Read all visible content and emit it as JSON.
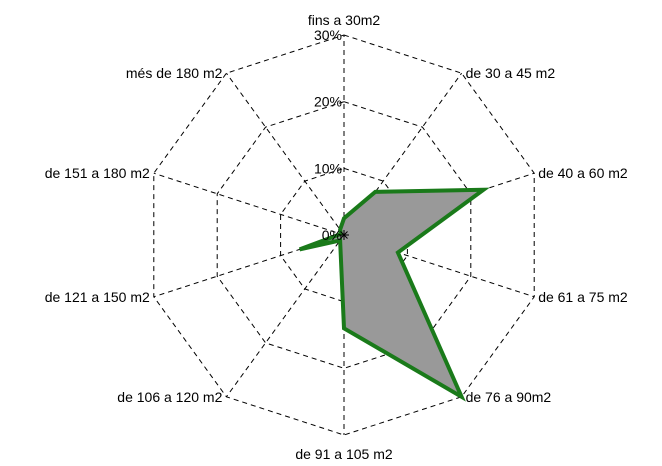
{
  "chart_data": {
    "type": "radar",
    "title": "",
    "categories": [
      "fins a 30m2",
      "de 30 a 45 m2",
      "de 40 a 60 m2",
      "de 61 a 75 m2",
      "de 76 a 90m2",
      "de 91 a 105 m2",
      "de 106 a 120 m2",
      "de 121 a 150 m2",
      "de 151 a 180 m2",
      "més de 180 m2"
    ],
    "tick_labels": [
      "0%",
      "10%",
      "20%",
      "30%"
    ],
    "rlim": [
      0,
      30
    ],
    "tick_values": [
      0,
      10,
      20,
      30
    ],
    "grid": true,
    "legend": "none",
    "series": [
      {
        "values": [
          2.5,
          8.0,
          22.0,
          8.5,
          30.0,
          14.0,
          1.0,
          7.0,
          0.5,
          1.0
        ],
        "fill_color": "#999999",
        "line_color": "#1a7a1a"
      }
    ]
  }
}
